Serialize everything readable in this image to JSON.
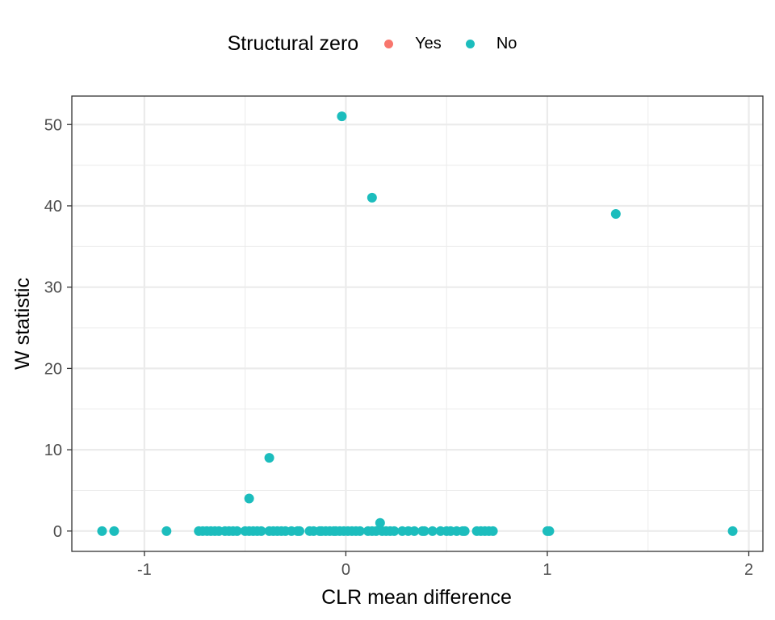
{
  "colors": {
    "yes": "#F8766D",
    "no": "#1CBDBD",
    "grid": "#EBEBEB",
    "panel_border": "#333333",
    "tick_text": "#4D4D4D"
  },
  "legend": {
    "title": "Structural zero",
    "items": [
      {
        "label": "Yes",
        "color_key": "yes"
      },
      {
        "label": "No",
        "color_key": "no"
      }
    ],
    "position": "top"
  },
  "chart_data": {
    "type": "scatter",
    "title": "",
    "xlabel": "CLR mean difference",
    "ylabel": "W statistic",
    "xlim": [
      -1.36,
      2.07
    ],
    "ylim": [
      -2.5,
      53.5
    ],
    "x_ticks": [
      -1,
      0,
      1,
      2
    ],
    "x_tick_labels": [
      "-1",
      "0",
      "1",
      "2"
    ],
    "y_ticks": [
      0,
      10,
      20,
      30,
      40,
      50
    ],
    "y_tick_labels": [
      "0",
      "10",
      "20",
      "30",
      "40",
      "50"
    ],
    "grid": true,
    "series": [
      {
        "name": "Yes",
        "x": [],
        "y": []
      },
      {
        "name": "No",
        "x": [
          -0.02,
          0.13,
          1.34,
          -0.38,
          -0.48,
          0.17,
          -1.21,
          -1.15,
          -0.89,
          -0.73,
          -0.71,
          -0.69,
          -0.67,
          -0.65,
          -0.63,
          -0.6,
          -0.58,
          -0.56,
          -0.54,
          -0.5,
          -0.48,
          -0.46,
          -0.44,
          -0.42,
          -0.38,
          -0.36,
          -0.34,
          -0.32,
          -0.3,
          -0.27,
          -0.24,
          -0.23,
          -0.18,
          -0.16,
          -0.13,
          -0.12,
          -0.1,
          -0.08,
          -0.06,
          -0.05,
          -0.03,
          -0.01,
          0.01,
          0.03,
          0.05,
          0.07,
          0.11,
          0.13,
          0.15,
          0.18,
          0.2,
          0.22,
          0.24,
          0.28,
          0.31,
          0.34,
          0.38,
          0.39,
          0.43,
          0.47,
          0.5,
          0.52,
          0.55,
          0.58,
          0.59,
          0.65,
          0.67,
          0.69,
          0.71,
          0.73,
          1.0,
          1.01,
          1.92
        ],
        "y": [
          51,
          41,
          39,
          9,
          4,
          1,
          0,
          0,
          0,
          0,
          0,
          0,
          0,
          0,
          0,
          0,
          0,
          0,
          0,
          0,
          0,
          0,
          0,
          0,
          0,
          0,
          0,
          0,
          0,
          0,
          0,
          0,
          0,
          0,
          0,
          0,
          0,
          0,
          0,
          0,
          0,
          0,
          0,
          0,
          0,
          0,
          0,
          0,
          0,
          0,
          0,
          0,
          0,
          0,
          0,
          0,
          0,
          0,
          0,
          0,
          0,
          0,
          0,
          0,
          0,
          0,
          0,
          0,
          0,
          0,
          0,
          0,
          0
        ]
      }
    ]
  }
}
